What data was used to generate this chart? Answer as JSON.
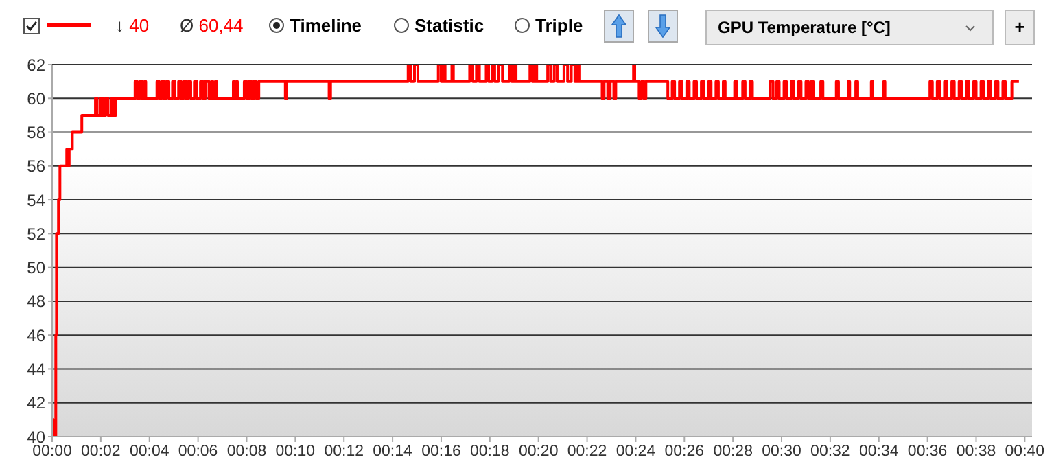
{
  "chart_data": {
    "type": "step",
    "annotations": [
      "↓ 40",
      "Ø 60,44",
      "Timeline",
      "Statistic",
      "Triple",
      "GPU Temperature [°C]",
      "+"
    ],
    "series": [
      {
        "color": "#ff0000",
        "x": [
          0,
          0.04,
          0.15,
          0.18,
          0.26,
          0.32,
          0.6,
          0.66,
          0.7,
          0.83,
          1.22,
          1.78,
          1.85,
          2.0,
          2.08,
          2.2,
          2.3,
          2.45,
          2.52,
          2.62,
          3.41,
          3.5,
          3.6,
          3.7,
          3.8,
          3.85,
          4.31,
          4.4,
          4.5,
          4.6,
          4.7,
          4.8,
          4.95,
          5.05,
          5.2,
          5.3,
          5.4,
          5.5,
          5.6,
          5.7,
          5.85,
          5.95,
          6.1,
          6.2,
          6.3,
          6.45,
          6.55,
          6.61,
          6.71,
          6.76,
          7.45,
          7.5,
          7.58,
          7.62,
          7.9,
          8.0,
          8.1,
          8.2,
          8.3,
          8.4,
          8.5,
          8.58,
          9.59,
          9.65,
          11.39,
          11.45,
          14.64,
          14.75,
          14.9,
          15.04,
          15.88,
          16.0,
          16.1,
          16.16,
          16.44,
          16.5,
          17.17,
          17.3,
          17.45,
          17.57,
          17.85,
          17.95,
          18.1,
          18.2,
          18.35,
          18.52,
          18.8,
          18.9,
          19.0,
          19.08,
          19.65,
          19.75,
          19.85,
          19.93,
          20.38,
          20.5,
          20.65,
          20.77,
          21.05,
          21.2,
          21.35,
          21.5,
          21.6,
          21.67,
          22.62,
          22.7,
          22.85,
          22.95,
          23.1,
          23.18,
          23.91,
          23.96,
          24.14,
          24.24,
          24.34,
          24.42,
          25.32,
          25.5,
          25.6,
          25.8,
          25.9,
          26.1,
          26.2,
          26.4,
          26.5,
          26.7,
          26.8,
          27.0,
          27.1,
          27.3,
          27.4,
          27.6,
          27.68,
          28.07,
          28.15,
          28.4,
          28.5,
          28.7,
          28.8,
          29.53,
          29.65,
          29.8,
          29.9,
          30.1,
          30.2,
          30.4,
          30.5,
          30.7,
          30.8,
          31.0,
          31.1,
          31.22,
          31.3,
          31.61,
          31.7,
          32.25,
          32.34,
          32.74,
          32.8,
          33.05,
          33.13,
          33.69,
          33.75,
          34.2,
          34.25,
          36.1,
          36.2,
          36.4,
          36.5,
          36.7,
          36.8,
          37.0,
          37.1,
          37.3,
          37.4,
          37.6,
          37.7,
          37.9,
          38.0,
          38.2,
          38.3,
          38.5,
          38.6,
          38.8,
          38.9,
          39.1,
          39.2,
          39.47,
          39.76
        ],
        "values": [
          41,
          40,
          46,
          52,
          54,
          56,
          57,
          56,
          57,
          58,
          59,
          60,
          59,
          60,
          59,
          60,
          59,
          60,
          59,
          60,
          61,
          60,
          61,
          60,
          61,
          60,
          61,
          60,
          61,
          60,
          61,
          60,
          61,
          60,
          61,
          60,
          61,
          60,
          61,
          60,
          61,
          60,
          61,
          60,
          61,
          60,
          61,
          60,
          61,
          60,
          61,
          60,
          61,
          60,
          61,
          60,
          61,
          60,
          61,
          60,
          61,
          61,
          60,
          61,
          60,
          61,
          62,
          61,
          62,
          61,
          62,
          61,
          62,
          61,
          62,
          61,
          62,
          61,
          62,
          61,
          62,
          61,
          62,
          61,
          62,
          61,
          62,
          61,
          62,
          61,
          62,
          61,
          62,
          61,
          62,
          61,
          62,
          61,
          62,
          61,
          62,
          61,
          62,
          61,
          60,
          61,
          60,
          61,
          60,
          61,
          62,
          61,
          60,
          61,
          60,
          61,
          60,
          61,
          60,
          61,
          60,
          61,
          60,
          61,
          60,
          61,
          60,
          61,
          60,
          61,
          60,
          61,
          60,
          61,
          60,
          61,
          60,
          61,
          60,
          61,
          60,
          61,
          60,
          61,
          60,
          61,
          60,
          61,
          60,
          61,
          60,
          61,
          60,
          61,
          60,
          61,
          60,
          61,
          60,
          61,
          60,
          61,
          60,
          61,
          60,
          61,
          60,
          61,
          60,
          61,
          60,
          61,
          60,
          61,
          60,
          61,
          60,
          61,
          60,
          61,
          60,
          61,
          60,
          61,
          60,
          61,
          60,
          61,
          61
        ]
      }
    ],
    "xlim": [
      0,
      40.3
    ],
    "xticks": [
      {
        "value": 0,
        "label": "00:00"
      },
      {
        "value": 2,
        "label": "00:02"
      },
      {
        "value": 4,
        "label": "00:04"
      },
      {
        "value": 6,
        "label": "00:06"
      },
      {
        "value": 8,
        "label": "00:08"
      },
      {
        "value": 10,
        "label": "00:10"
      },
      {
        "value": 12,
        "label": "00:12"
      },
      {
        "value": 14,
        "label": "00:14"
      },
      {
        "value": 16,
        "label": "00:16"
      },
      {
        "value": 18,
        "label": "00:18"
      },
      {
        "value": 20,
        "label": "00:20"
      },
      {
        "value": 22,
        "label": "00:22"
      },
      {
        "value": 24,
        "label": "00:24"
      },
      {
        "value": 26,
        "label": "00:26"
      },
      {
        "value": 28,
        "label": "00:28"
      },
      {
        "value": 30,
        "label": "00:30"
      },
      {
        "value": 32,
        "label": "00:32"
      },
      {
        "value": 34,
        "label": "00:34"
      },
      {
        "value": 36,
        "label": "00:36"
      },
      {
        "value": 38,
        "label": "00:38"
      },
      {
        "value": 40,
        "label": "00:40"
      }
    ],
    "ylim": [
      40,
      62
    ],
    "yticks": [
      40,
      42,
      44,
      46,
      48,
      50,
      52,
      54,
      56,
      58,
      60,
      62
    ],
    "grid": "y"
  }
}
